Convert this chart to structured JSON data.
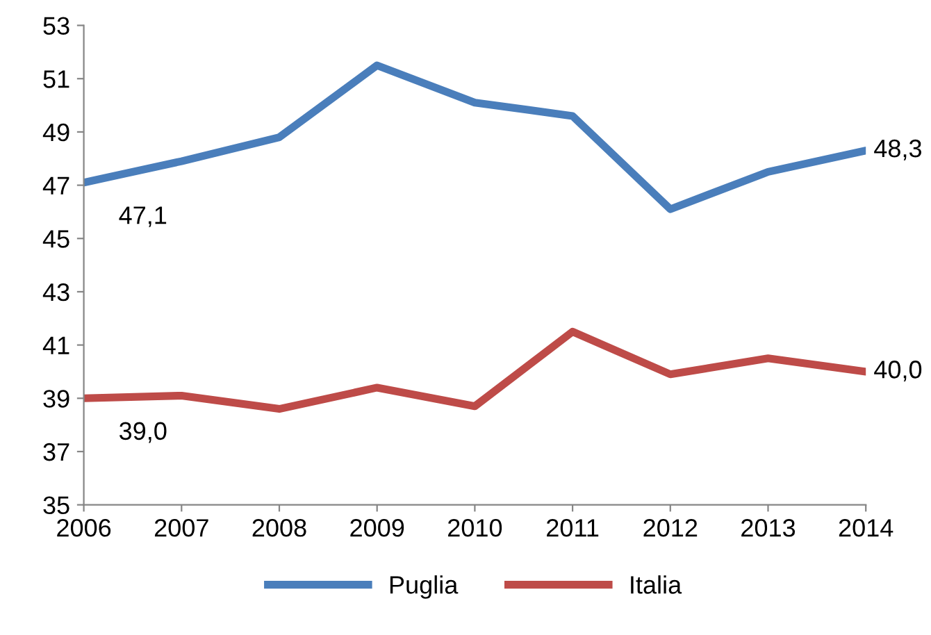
{
  "chart_data": {
    "type": "line",
    "x": [
      2006,
      2007,
      2008,
      2009,
      2010,
      2011,
      2012,
      2013,
      2014
    ],
    "xlim": [
      2006,
      2014
    ],
    "xticks": [
      2006,
      2007,
      2008,
      2009,
      2010,
      2011,
      2012,
      2013,
      2014
    ],
    "ylim": [
      35,
      53
    ],
    "yticks": [
      35,
      37,
      39,
      41,
      43,
      45,
      47,
      49,
      51,
      53
    ],
    "series": [
      {
        "name": "Puglia",
        "color": "#4a7ebb",
        "values": [
          47.1,
          47.9,
          48.8,
          51.5,
          50.1,
          49.6,
          46.1,
          47.5,
          48.3
        ],
        "value_labels": [
          "47,1",
          null,
          null,
          null,
          null,
          null,
          null,
          null,
          "48,3"
        ]
      },
      {
        "name": "Italia",
        "color": "#be4b48",
        "values": [
          39.0,
          39.1,
          38.6,
          39.4,
          38.7,
          41.5,
          39.9,
          40.5,
          40.0
        ],
        "value_labels": [
          "39,0",
          null,
          null,
          null,
          null,
          null,
          null,
          null,
          "40,0"
        ]
      }
    ],
    "grid": false,
    "legend": "bottom",
    "marker": "none",
    "line_style": "solid"
  }
}
